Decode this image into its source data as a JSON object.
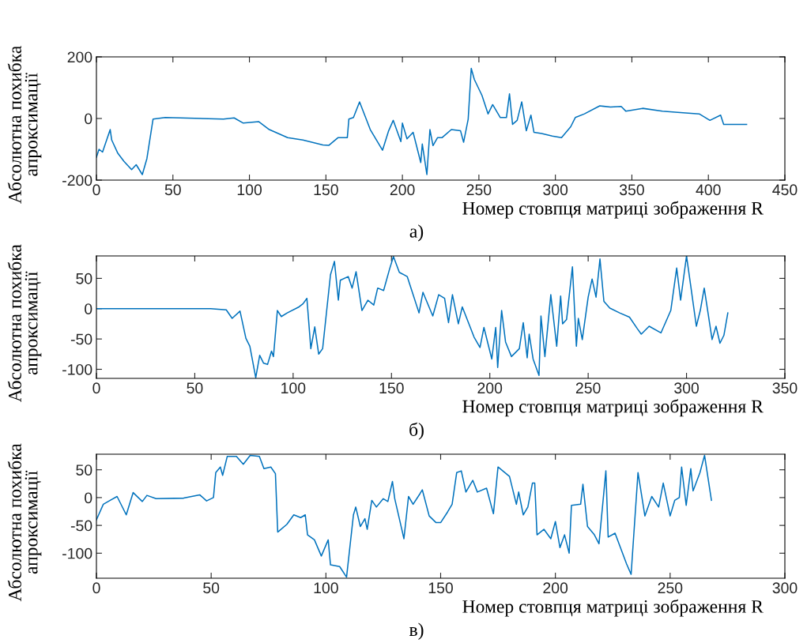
{
  "chart_data": [
    {
      "type": "line",
      "xlabel": "Номер стовпця матриці зображення R",
      "ylabel": "Абсолютна похибка\nапроксимації",
      "annotations": [
        "а)"
      ],
      "xlim": [
        0,
        450
      ],
      "xticks": [
        0,
        50,
        100,
        150,
        200,
        250,
        300,
        350,
        400,
        450
      ],
      "ylim": [
        -200,
        200
      ],
      "yticks": [
        -200,
        0,
        200
      ],
      "grid": false,
      "legend": false,
      "series": [
        {
          "color": "#0072bd",
          "x": [
            0,
            1.7,
            4,
            9,
            10,
            14,
            18,
            23,
            26,
            30,
            33,
            37,
            45,
            83,
            90,
            96,
            106,
            113,
            125,
            135,
            148,
            152,
            158,
            164,
            165,
            168,
            172,
            179,
            187,
            191,
            194,
            199,
            200,
            203,
            207,
            212,
            213,
            216,
            218,
            220,
            223,
            226,
            232,
            238,
            240,
            243,
            245,
            247,
            252,
            256,
            259,
            264,
            268,
            270,
            272,
            275,
            278,
            281,
            284,
            286,
            291,
            298,
            304,
            310,
            313,
            319,
            329,
            336,
            343,
            346,
            357,
            370,
            380,
            394,
            401,
            408,
            410,
            421,
            425
          ],
          "values": [
            -126,
            -100,
            -109,
            -36,
            -70,
            -113,
            -139,
            -166,
            -150,
            -182,
            -130,
            -2,
            3,
            -2,
            2,
            -15,
            -10,
            -36,
            -62,
            -70,
            -86,
            -87,
            -62,
            -62,
            -2,
            3,
            54,
            -36,
            -103,
            -40,
            -6,
            -75,
            -15,
            -66,
            -45,
            -143,
            -83,
            -182,
            -36,
            -88,
            -62,
            -62,
            -36,
            -40,
            -77,
            -2,
            163,
            127,
            75,
            15,
            45,
            3,
            3,
            80,
            -19,
            -6,
            54,
            -40,
            11,
            -45,
            -49,
            -57,
            -62,
            -27,
            3,
            15,
            41,
            37,
            39,
            24,
            33,
            24,
            20,
            15,
            -6,
            11,
            -19,
            -19,
            -19
          ]
        }
      ]
    },
    {
      "type": "line",
      "xlabel": "Номер стовпця матриці зображення R",
      "ylabel": "Абсолютна похибка\nапроксимації",
      "annotations": [
        "б)"
      ],
      "xlim": [
        0,
        350
      ],
      "xticks": [
        0,
        50,
        100,
        150,
        200,
        250,
        300,
        350
      ],
      "ylim": [
        -115,
        87
      ],
      "yticks": [
        -100,
        -50,
        0,
        50
      ],
      "grid": false,
      "legend": false,
      "series": [
        {
          "color": "#0072bd",
          "x": [
            0,
            58,
            66,
            69,
            73,
            76,
            78,
            81,
            83,
            85,
            87,
            89,
            90,
            92,
            94,
            97,
            103,
            105,
            107,
            109,
            111,
            113,
            115,
            119,
            121,
            123,
            124,
            128,
            130,
            132,
            135,
            138,
            141,
            143,
            146,
            149,
            151,
            154,
            158,
            161,
            164,
            166,
            171,
            174,
            177,
            179,
            181,
            184,
            186,
            192,
            195,
            197,
            201,
            203,
            204,
            206,
            208,
            211,
            215,
            217,
            219,
            220,
            222,
            225,
            226,
            228,
            231,
            234,
            236,
            237,
            239,
            242,
            244,
            245,
            247,
            250,
            252,
            254,
            256,
            258,
            261,
            266,
            271,
            275,
            277,
            281,
            287,
            292,
            295,
            297,
            300,
            302,
            305,
            307,
            309,
            313,
            315,
            317,
            319,
            321
          ],
          "values": [
            0,
            0,
            -2,
            -16,
            -4,
            -49,
            -62,
            -114,
            -77,
            -90,
            -92,
            -70,
            -79,
            -3,
            -13,
            -7,
            3,
            8,
            17,
            -66,
            -30,
            -75,
            -66,
            56,
            78,
            14,
            47,
            53,
            34,
            61,
            -3,
            14,
            6,
            34,
            30,
            65,
            86,
            60,
            53,
            23,
            -7,
            27,
            -12,
            23,
            17,
            -23,
            23,
            -25,
            3,
            -47,
            -64,
            -31,
            -83,
            -31,
            -97,
            -3,
            -55,
            -79,
            -66,
            -23,
            -81,
            -42,
            -83,
            -110,
            -12,
            -79,
            23,
            -62,
            21,
            -25,
            -18,
            69,
            -62,
            -16,
            -51,
            19,
            49,
            19,
            82,
            12,
            1,
            -7,
            -14,
            -33,
            -42,
            -29,
            -40,
            -3,
            67,
            14,
            87,
            41,
            -29,
            -3,
            34,
            -51,
            -29,
            -57,
            -44,
            -7
          ]
        }
      ]
    },
    {
      "type": "line",
      "xlabel": "Номер стовпця матриці зображення R",
      "ylabel": "Абсолютна похибка\nапроксимації",
      "annotations": [
        "в)"
      ],
      "xlim": [
        0,
        300
      ],
      "xticks": [
        0,
        50,
        100,
        150,
        200,
        250,
        300
      ],
      "ylim": [
        -145,
        78
      ],
      "yticks": [
        -100,
        -50,
        0,
        50
      ],
      "grid": false,
      "legend": false,
      "series": [
        {
          "color": "#0072bd",
          "x": [
            0,
            3,
            6,
            9,
            13,
            16,
            20,
            22,
            26,
            38,
            45,
            48,
            51,
            52,
            54,
            55,
            57,
            61,
            64,
            67,
            71,
            73,
            76,
            78,
            79,
            83,
            86,
            89,
            91,
            92,
            95,
            98,
            101,
            102,
            106,
            109,
            112,
            113,
            115,
            117,
            118,
            120,
            122,
            125,
            127,
            129,
            130,
            134,
            136,
            138,
            141,
            142,
            145,
            148,
            150,
            153,
            155,
            157,
            159,
            161,
            164,
            166,
            170,
            173,
            175,
            180,
            183,
            184,
            186,
            188,
            190,
            191,
            192,
            195,
            198,
            200,
            202,
            204,
            206,
            207,
            211,
            212,
            214,
            217,
            219,
            222,
            223,
            226,
            228,
            231,
            233,
            236,
            239,
            242,
            245,
            247,
            250,
            252,
            254,
            255,
            257,
            259,
            260,
            263,
            265,
            268
          ],
          "values": [
            -40,
            -12,
            -5,
            2,
            -31,
            9,
            -7,
            4,
            -2,
            -1,
            5,
            -6,
            0,
            45,
            55,
            40,
            74,
            74,
            60,
            76,
            74,
            52,
            55,
            43,
            -62,
            -48,
            -31,
            -36,
            -31,
            -67,
            -76,
            -105,
            -76,
            -121,
            -124,
            -143,
            -31,
            -17,
            -52,
            -38,
            -57,
            -5,
            -17,
            -2,
            -7,
            29,
            -2,
            -74,
            2,
            -12,
            7,
            14,
            -33,
            -45,
            -45,
            -26,
            -12,
            45,
            48,
            10,
            31,
            10,
            17,
            -29,
            55,
            38,
            -12,
            10,
            -31,
            -17,
            26,
            26,
            -67,
            -57,
            -74,
            -43,
            -90,
            -67,
            -100,
            -14,
            -12,
            24,
            -52,
            -67,
            -83,
            48,
            -71,
            -64,
            -86,
            -119,
            -138,
            45,
            -33,
            2,
            -17,
            26,
            -33,
            -5,
            0,
            55,
            -14,
            52,
            12,
            45,
            76,
            -5
          ]
        }
      ]
    }
  ]
}
